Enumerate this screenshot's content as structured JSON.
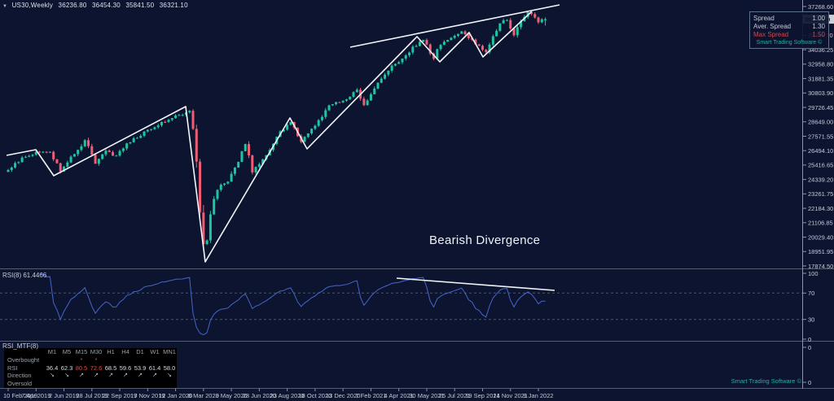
{
  "window": {
    "symbol_label": "US30,Weekly",
    "open": "36236.80",
    "high": "36454.30",
    "low": "35841.50",
    "close": "36321.10"
  },
  "spread_box": {
    "rows": [
      {
        "label": "Spread",
        "value": "1.00",
        "color": "#c6ccd6"
      },
      {
        "label": "Aver. Spread",
        "value": "1.30",
        "color": "#c6ccd6"
      },
      {
        "label": "Max Spread",
        "value": "1.50",
        "color": "#d24848"
      }
    ],
    "footer": "Smart Trading Software ©",
    "footer_color": "#1db3a4"
  },
  "annotation": {
    "text": "Bearish Divergence"
  },
  "watermark": {
    "text": "Smart Trading Software ©",
    "color": "#1db3a4"
  },
  "price_axis": {
    "labels": [
      "37268.60",
      "36191.15",
      "35113.70",
      "34036.25",
      "32958.80",
      "31881.35",
      "30803.90",
      "29726.45",
      "28649.00",
      "27571.55",
      "26494.10",
      "25416.65",
      "24339.20",
      "23261.75",
      "22184.30",
      "21106.85",
      "20029.40",
      "18951.95",
      "17874.50"
    ],
    "current_price": "36321.10"
  },
  "time_axis": {
    "labels": [
      "10 Feb 2019",
      "7 Apr 2019",
      "2 Jun 2019",
      "28 Jul 2019",
      "22 Sep 2019",
      "17 Nov 2019",
      "12 Jan 2020",
      "8 Mar 2020",
      "3 May 2020",
      "28 Jun 2020",
      "23 Aug 2020",
      "18 Oct 2020",
      "13 Dec 2020",
      "7 Feb 2021",
      "4 Apr 2021",
      "30 May 2021",
      "25 Jul 2021",
      "19 Sep 2021",
      "14 Nov 2021",
      "9 Jan 2022"
    ]
  },
  "rsi_panel": {
    "label": "RSI(8) 61.4466",
    "scale_labels": [
      "100",
      "70",
      "30",
      "0"
    ],
    "levels": [
      70,
      30
    ]
  },
  "rsi_mtf_panel": {
    "label": "RSI_MTF(8)",
    "scale_labels": [
      "0",
      "0"
    ],
    "table": {
      "columns": [
        "M1",
        "M5",
        "M15",
        "M30",
        "H1",
        "H4",
        "D1",
        "W1",
        "MN1"
      ],
      "rows": [
        {
          "label": "Overbought",
          "values": [
            "",
            "",
            "*",
            "*",
            "",
            "",
            "",
            "",
            ""
          ],
          "red_cols": [
            2,
            3
          ],
          "type": "mark"
        },
        {
          "label": "RSI",
          "values": [
            "36.4",
            "62.3",
            "80.5",
            "72.6",
            "68.5",
            "59.6",
            "53.9",
            "61.4",
            "58.0"
          ],
          "red_cols": [
            2,
            3
          ],
          "type": "value"
        },
        {
          "label": "Direction",
          "values": [
            "↘",
            "↘",
            "↗",
            "↗",
            "↗",
            "↗",
            "↗",
            "↗",
            "↘"
          ],
          "red_cols": [],
          "type": "arrow"
        },
        {
          "label": "Oversold",
          "values": [
            "",
            "",
            "",
            "",
            "",
            "",
            "",
            "",
            ""
          ],
          "red_cols": [],
          "type": "mark"
        }
      ]
    }
  },
  "chart_data": {
    "type": "candlestick",
    "title": "US30,Weekly",
    "symbol": "US30",
    "timeframe": "Weekly",
    "last_ohlc": {
      "open": 36236.8,
      "high": 36454.3,
      "low": 35841.5,
      "close": 36321.1
    },
    "indicator": {
      "name": "RSI",
      "period": 8,
      "current_value": 61.4466
    },
    "ylim": [
      17874.5,
      37268.6
    ],
    "grid": false,
    "num_weeks": 155,
    "seed": 20220109,
    "colors": {
      "up": "#1fc4a1",
      "down": "#ef5e72",
      "rsi_line": "#4666c8",
      "trendline": "#f3f5f9"
    },
    "anchors": [
      [
        0,
        25050
      ],
      [
        4,
        25900
      ],
      [
        8,
        26350
      ],
      [
        12,
        26420
      ],
      [
        15,
        24950
      ],
      [
        22,
        27250
      ],
      [
        25,
        25650
      ],
      [
        28,
        26500
      ],
      [
        31,
        26050
      ],
      [
        34,
        27000
      ],
      [
        40,
        28050
      ],
      [
        44,
        28550
      ],
      [
        48,
        29050
      ],
      [
        52,
        29400
      ],
      [
        53,
        28300
      ],
      [
        54,
        25400
      ],
      [
        56,
        19100
      ],
      [
        57,
        19800
      ],
      [
        58,
        21700
      ],
      [
        60,
        23700
      ],
      [
        63,
        24250
      ],
      [
        66,
        25600
      ],
      [
        68,
        27100
      ],
      [
        70,
        25050
      ],
      [
        74,
        26100
      ],
      [
        78,
        27900
      ],
      [
        81,
        28650
      ],
      [
        84,
        27150
      ],
      [
        88,
        28350
      ],
      [
        92,
        29900
      ],
      [
        96,
        30200
      ],
      [
        100,
        31050
      ],
      [
        102,
        29950
      ],
      [
        106,
        31500
      ],
      [
        110,
        32800
      ],
      [
        112,
        33150
      ],
      [
        116,
        34200
      ],
      [
        119,
        34750
      ],
      [
        122,
        33450
      ],
      [
        124,
        34450
      ],
      [
        128,
        35050
      ],
      [
        130,
        35400
      ],
      [
        133,
        34700
      ],
      [
        137,
        33900
      ],
      [
        141,
        36100
      ],
      [
        143,
        36300
      ],
      [
        145,
        35050
      ],
      [
        147,
        36300
      ],
      [
        149,
        36850
      ],
      [
        151,
        36500
      ],
      [
        152,
        36150
      ],
      [
        154,
        36321.1
      ]
    ],
    "overlays": {
      "price_trendlines": [
        [
          [
            8,
            191
          ],
          [
            44,
            184
          ],
          [
            66,
            216
          ],
          [
            228,
            131
          ],
          [
            252,
            322
          ],
          [
            356,
            145
          ],
          [
            377,
            183
          ],
          [
            512,
            45
          ],
          [
            540,
            76
          ],
          [
            576,
            40
          ],
          [
            593,
            70
          ],
          [
            653,
            14
          ]
        ],
        [
          [
            430,
            58
          ],
          [
            687,
            6
          ]
        ]
      ],
      "rsi_trendline": [
        [
          487,
          342
        ],
        [
          681,
          357
        ]
      ]
    }
  }
}
